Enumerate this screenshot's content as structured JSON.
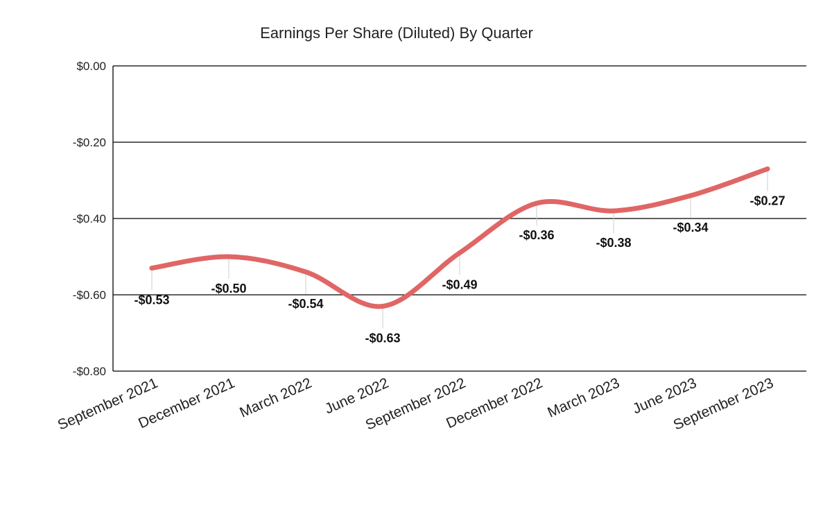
{
  "chart_data": {
    "type": "line",
    "title": "Earnings Per Share (Diluted) By Quarter",
    "xlabel": "",
    "ylabel": "",
    "categories": [
      "September 2021",
      "December 2021",
      "March 2022",
      "June 2022",
      "September 2022",
      "December 2022",
      "March 2023",
      "June 2023",
      "September 2023"
    ],
    "values": [
      -0.53,
      -0.5,
      -0.54,
      -0.63,
      -0.49,
      -0.36,
      -0.38,
      -0.34,
      -0.27
    ],
    "data_labels": [
      "-$0.53",
      "-$0.50",
      "-$0.54",
      "-$0.63",
      "-$0.49",
      "-$0.36",
      "-$0.38",
      "-$0.34",
      "-$0.27"
    ],
    "ylim": [
      -0.8,
      0
    ],
    "yticks": [
      0,
      -0.2,
      -0.4,
      -0.6,
      -0.8
    ],
    "ytick_labels": [
      "$0.00",
      "-$0.20",
      "-$0.40",
      "-$0.60",
      "-$0.80"
    ],
    "grid": true,
    "smooth": true,
    "line_color": "#e06666",
    "legend": "none"
  }
}
